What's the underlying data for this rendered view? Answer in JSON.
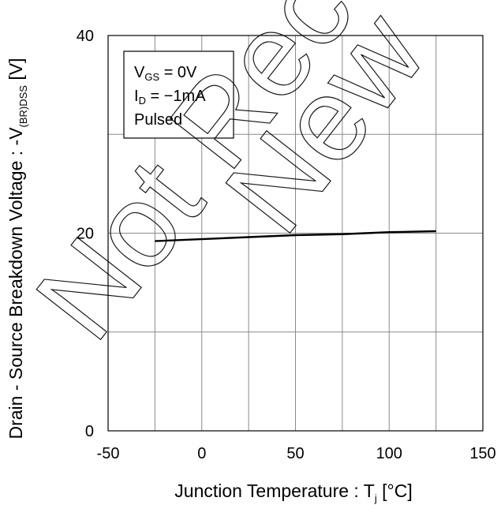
{
  "chart_data": {
    "type": "line",
    "xlabel": "Junction Temperature : Tj [°C]",
    "ylabel": "Drain - Source Breakdown Voltage : -V(BR)DSS [V]",
    "xlim": [
      -50,
      150
    ],
    "ylim": [
      0,
      40
    ],
    "x_ticks": [
      -50,
      0,
      50,
      100,
      150
    ],
    "y_ticks": [
      0,
      20,
      40
    ],
    "x_gridlines": [
      -50,
      -25,
      0,
      25,
      50,
      75,
      100,
      125,
      150
    ],
    "y_gridlines": [
      0,
      10,
      20,
      30,
      40
    ],
    "grid": true,
    "series": [
      {
        "x": [
          -25,
          0,
          25,
          50,
          75,
          100,
          125
        ],
        "y": [
          19.2,
          19.4,
          19.6,
          19.8,
          19.9,
          20.1,
          20.2
        ]
      }
    ],
    "legend_box": {
      "placement": "top-left",
      "lines": [
        {
          "main": "V",
          "sub": "GS",
          "rest": " = 0V"
        },
        {
          "main": "I",
          "sub": "D",
          "rest": " = −1mA"
        },
        {
          "main": "Pulsed",
          "sub": "",
          "rest": ""
        }
      ]
    }
  },
  "axes": {
    "x_label_main": "Junction Temperature : T",
    "x_label_sub": "j",
    "x_label_unit": " [°C]",
    "y_label_main": "Drain - Source Breakdown Voltage : -V",
    "y_label_sub": "(BR)DSS",
    "y_label_unit": " [V]"
  },
  "watermark": {
    "text": "Not Recommended for New Design",
    "visible_text": "Not Rec New"
  }
}
